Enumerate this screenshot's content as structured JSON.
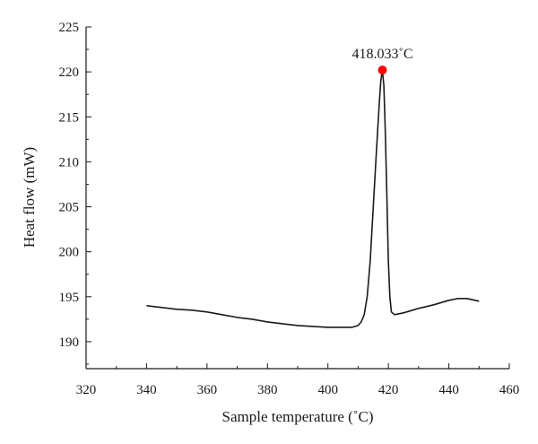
{
  "chart_data": {
    "type": "line",
    "title": "",
    "xlabel": "Sample temperature (˚C)",
    "ylabel": "Heat flow (mW)",
    "xlim": [
      320,
      460
    ],
    "ylim": [
      187,
      225
    ],
    "xticks": [
      320,
      340,
      360,
      380,
      400,
      420,
      440,
      460
    ],
    "yticks": [
      190,
      195,
      200,
      205,
      210,
      215,
      220,
      225
    ],
    "grid": false,
    "series": [
      {
        "color": "#1a1a1a",
        "x": [
          340,
          345,
          350,
          355,
          360,
          365,
          370,
          375,
          380,
          385,
          390,
          395,
          400,
          405,
          408,
          410,
          411,
          412,
          413,
          414,
          415,
          416,
          417,
          417.5,
          418,
          418.5,
          419,
          419.5,
          420,
          420.5,
          421,
          422,
          425,
          430,
          435,
          440,
          443,
          446,
          450
        ],
        "y": [
          194.0,
          193.8,
          193.6,
          193.5,
          193.3,
          193.0,
          192.7,
          192.5,
          192.2,
          192.0,
          191.8,
          191.7,
          191.6,
          191.6,
          191.6,
          191.8,
          192.2,
          193.0,
          195.0,
          199.0,
          205.0,
          211.0,
          216.5,
          219.0,
          220.2,
          218.5,
          213.0,
          206.0,
          199.0,
          195.0,
          193.3,
          193.0,
          193.2,
          193.7,
          194.1,
          194.6,
          194.8,
          194.8,
          194.5
        ]
      }
    ],
    "peak": {
      "x": 418.033,
      "y": 220.2,
      "label": "418.033˚C",
      "color": "#ff0000"
    }
  }
}
